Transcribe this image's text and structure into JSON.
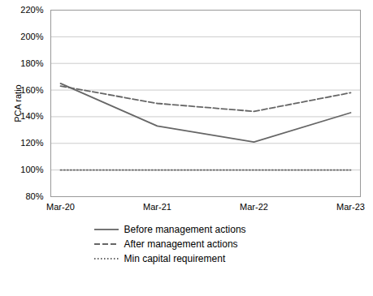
{
  "chart_data": {
    "type": "line",
    "categories": [
      "Mar-20",
      "Mar-21",
      "Mar-22",
      "Mar-23"
    ],
    "series": [
      {
        "name": "Before management actions",
        "color": "#666666",
        "line_style": "solid",
        "values": [
          1.65,
          1.33,
          1.21,
          1.43
        ]
      },
      {
        "name": "After management actions",
        "color": "#666666",
        "line_style": "dashed",
        "values": [
          1.63,
          1.5,
          1.44,
          1.58
        ]
      },
      {
        "name": "Min capital requirement",
        "color": "#666666",
        "line_style": "dotted",
        "values": [
          1.0,
          1.0,
          1.0,
          1.0
        ]
      }
    ],
    "ylabel": "PCA ratio",
    "ylim": [
      0.8,
      2.2
    ],
    "yticks": [
      {
        "value": 0.8,
        "label": "80%"
      },
      {
        "value": 1.0,
        "label": "100%"
      },
      {
        "value": 1.2,
        "label": "120%"
      },
      {
        "value": 1.4,
        "label": "140%"
      },
      {
        "value": 1.6,
        "label": "160%"
      },
      {
        "value": 1.8,
        "label": "180%"
      },
      {
        "value": 2.0,
        "label": "200%"
      },
      {
        "value": 2.2,
        "label": "220%"
      }
    ],
    "grid": true,
    "legend": "bottom"
  }
}
